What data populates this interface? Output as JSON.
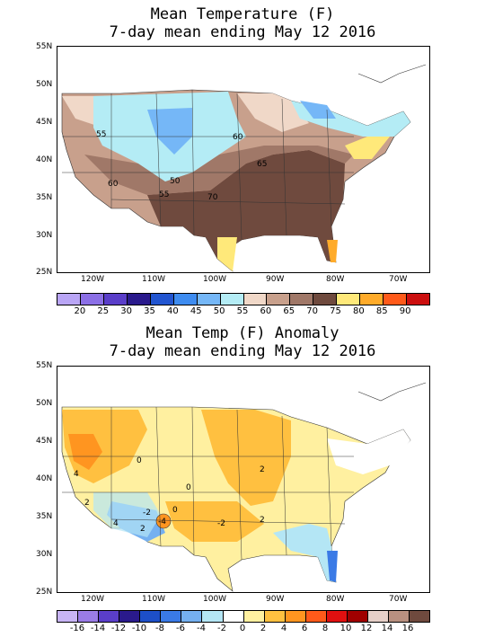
{
  "map1": {
    "title_line1": "Mean Temperature (F)",
    "title_line2": "7-day mean ending May 12 2016",
    "lat_labels": [
      "55N",
      "50N",
      "45N",
      "40N",
      "35N",
      "30N",
      "25N"
    ],
    "lon_labels": [
      "120W",
      "110W",
      "100W",
      "90W",
      "80W",
      "70W"
    ],
    "contour_labels": [
      "55",
      "60",
      "65",
      "50",
      "60",
      "55",
      "70"
    ],
    "colorbar_colors": [
      "#b9a5f5",
      "#8b6fe6",
      "#5a3ec9",
      "#2a1a8c",
      "#2255d0",
      "#3e8cf0",
      "#75b7f7",
      "#b4ecf5",
      "#f0d8c8",
      "#c8a08c",
      "#a07868",
      "#6f4a3e",
      "#ffe97a",
      "#ffab2a",
      "#ff5a1a",
      "#cc0f0f"
    ],
    "colorbar_labels": [
      "20",
      "25",
      "30",
      "35",
      "40",
      "45",
      "50",
      "55",
      "60",
      "65",
      "70",
      "75",
      "80",
      "85",
      "90"
    ]
  },
  "map2": {
    "title_line1": "Mean Temp (F) Anomaly",
    "title_line2": "7-day mean ending May 12 2016",
    "lat_labels": [
      "55N",
      "50N",
      "45N",
      "40N",
      "35N",
      "30N",
      "25N"
    ],
    "lon_labels": [
      "120W",
      "110W",
      "100W",
      "90W",
      "80W",
      "70W"
    ],
    "contour_labels": [
      "4",
      "2",
      "0",
      "-2",
      "2",
      "2",
      "0",
      "-2",
      "4",
      "2",
      "-4",
      "0"
    ],
    "colorbar_colors": [
      "#c8b4f5",
      "#9a7ce6",
      "#5a3ec9",
      "#2a1a8c",
      "#1d4fc8",
      "#3a7ae6",
      "#75b0f0",
      "#b4e6f5",
      "#ffffff",
      "#fff0a0",
      "#ffc040",
      "#ff9520",
      "#ff5a1a",
      "#e01010",
      "#a00000",
      "#e6cfc8",
      "#b89080",
      "#6f4a3e"
    ],
    "colorbar_labels": [
      "-16",
      "-14",
      "-12",
      "-10",
      "-8",
      "-6",
      "-4",
      "-2",
      "0",
      "2",
      "4",
      "6",
      "8",
      "10",
      "12",
      "14",
      "16"
    ]
  }
}
